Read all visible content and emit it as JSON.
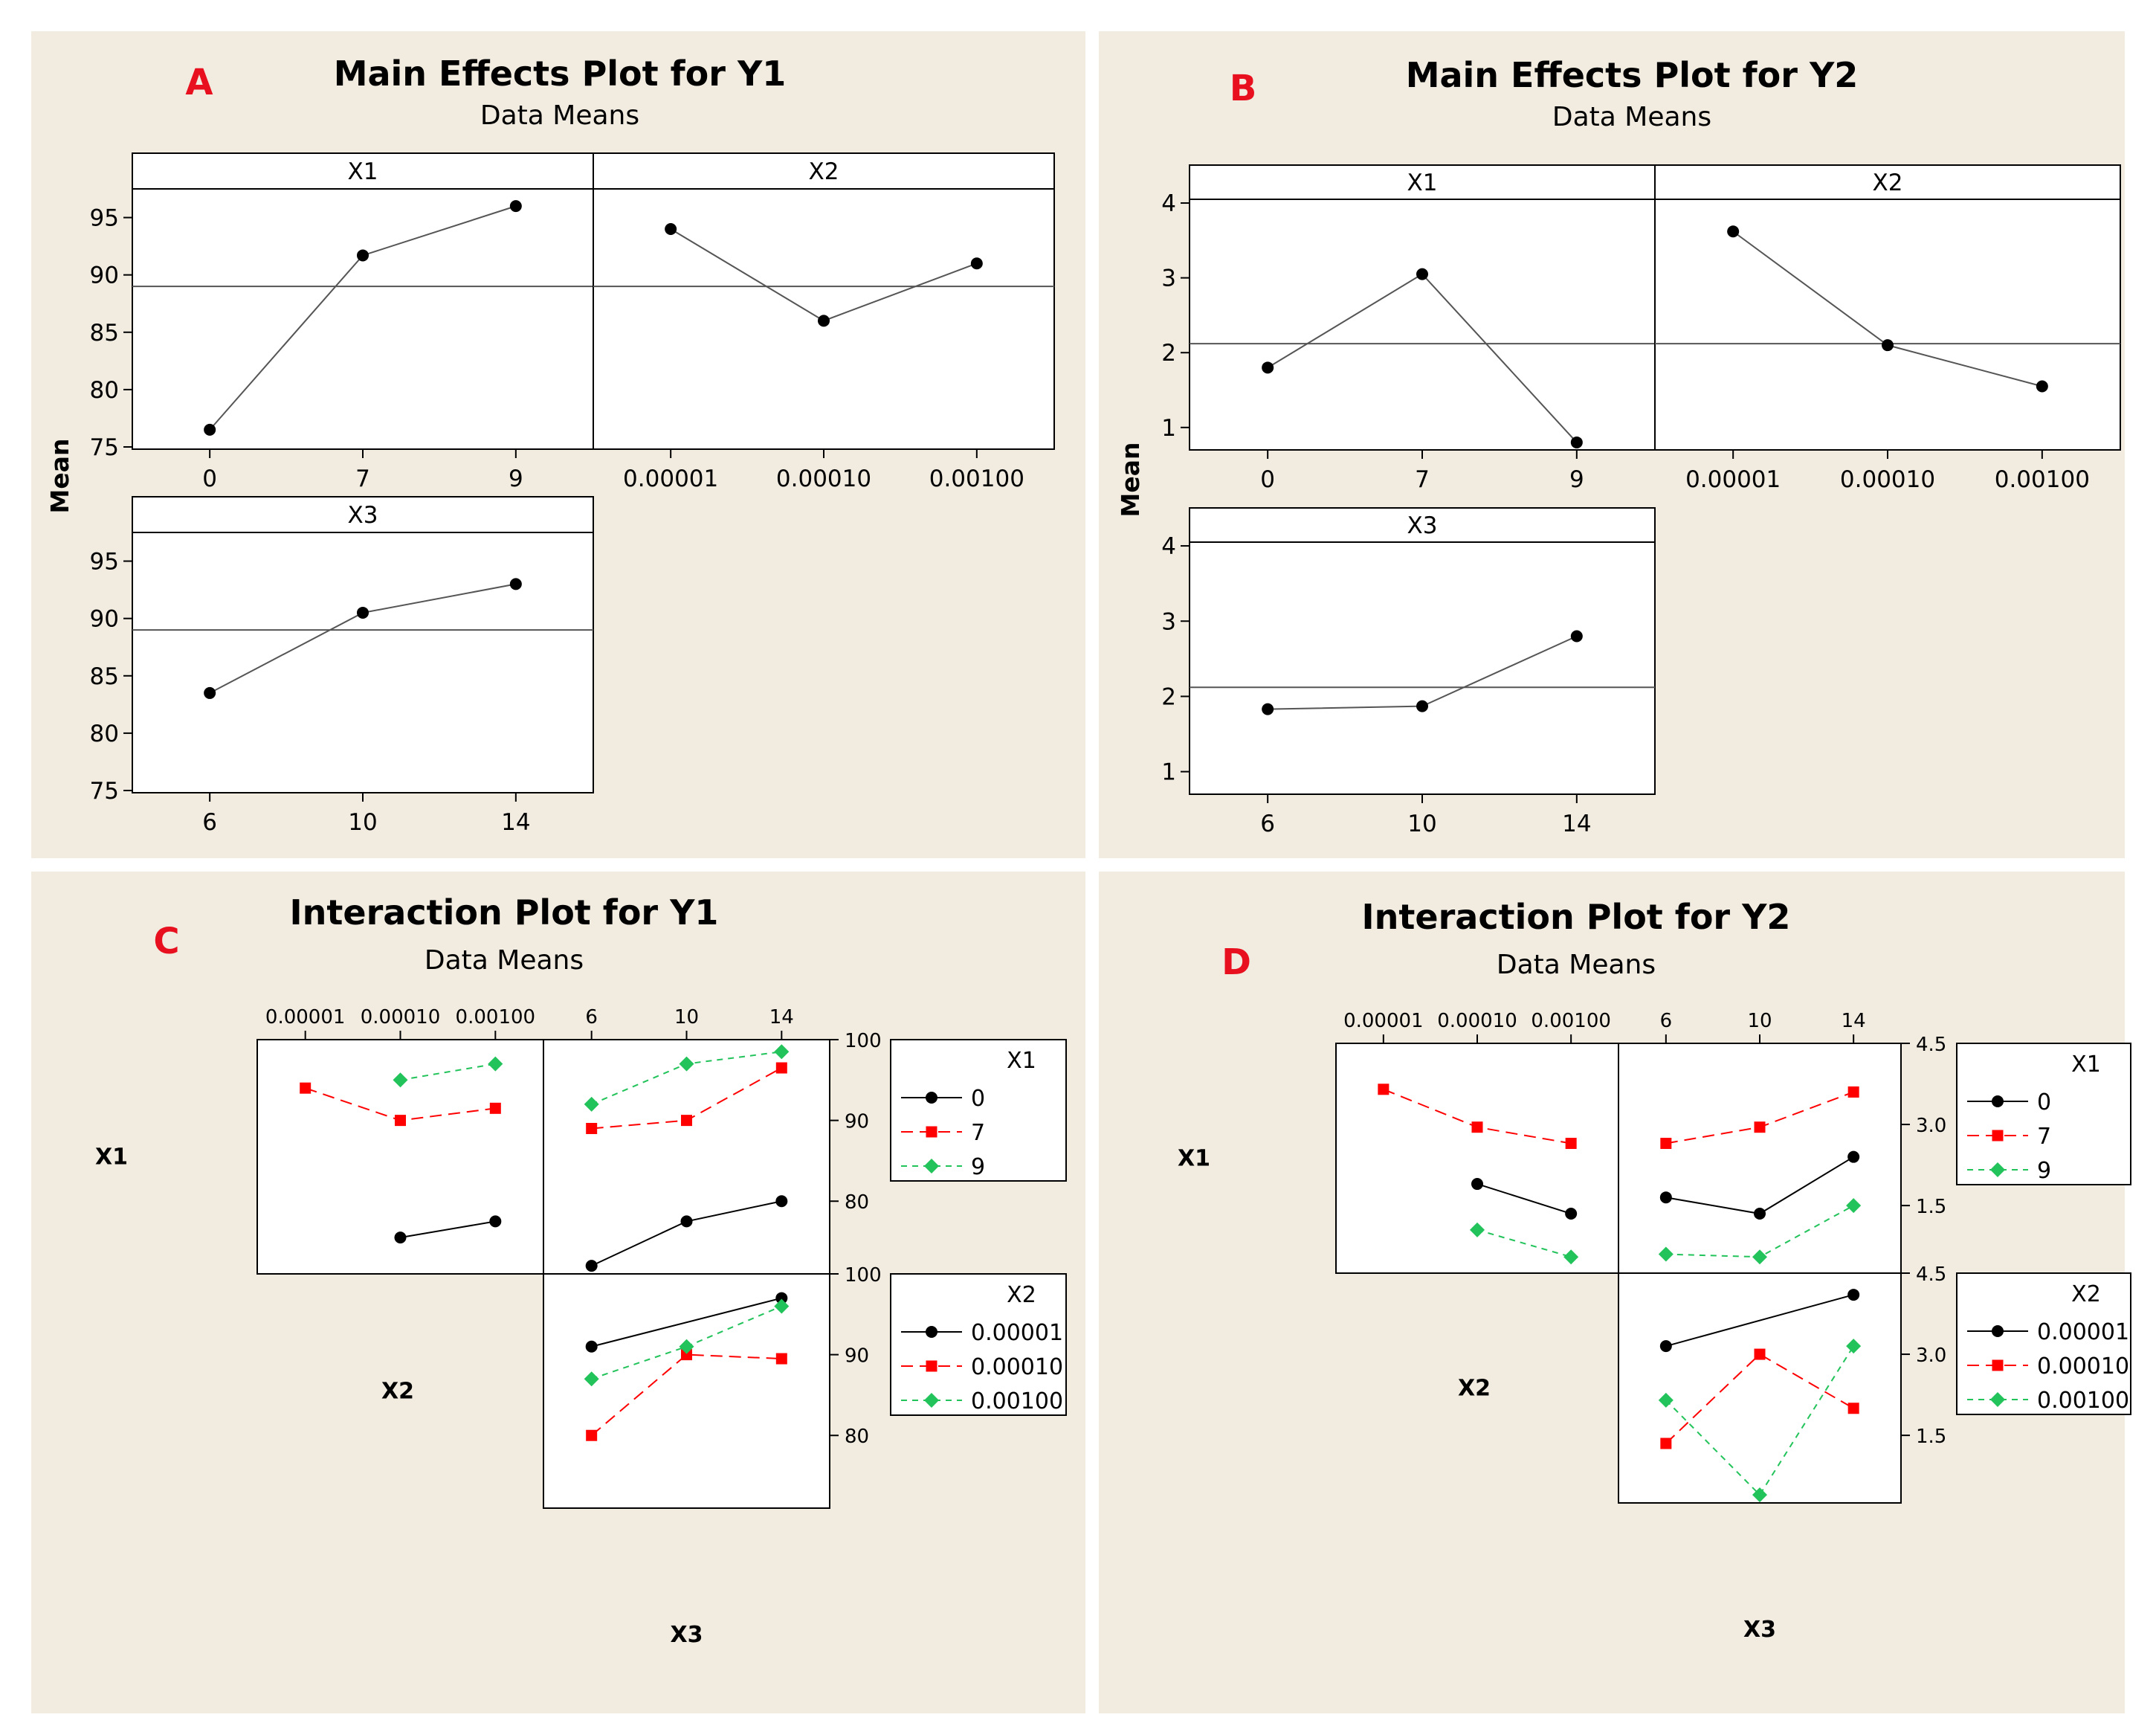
{
  "colors": {
    "background": "#f1ebe0",
    "plot_bg": "#ffffff",
    "letter": "#e8101e",
    "series": [
      "#000000",
      "#ff0000",
      "#22c35a"
    ]
  },
  "panel_letters": [
    "A",
    "B",
    "C",
    "D"
  ],
  "chart_data": [
    {
      "type": "line",
      "panel": "A",
      "title": "Main Effects Plot for Y1",
      "subtitle": "Data Means",
      "ylabel": "Mean",
      "ylim": [
        75,
        97.5
      ],
      "yticks": [
        75,
        80,
        85,
        90,
        95
      ],
      "grand_mean": 89,
      "factors": [
        {
          "name": "X1",
          "levels": [
            "0",
            "7",
            "9"
          ],
          "values": [
            76.5,
            91.7,
            96
          ]
        },
        {
          "name": "X2",
          "levels": [
            "0.00001",
            "0.00010",
            "0.00100"
          ],
          "values": [
            94,
            86,
            91
          ]
        },
        {
          "name": "X3",
          "levels": [
            "6",
            "10",
            "14"
          ],
          "values": [
            83.5,
            90.5,
            93
          ]
        }
      ]
    },
    {
      "type": "line",
      "panel": "B",
      "title": "Main Effects Plot for Y2",
      "subtitle": "Data Means",
      "ylabel": "Mean",
      "ylim": [
        0.7,
        4.05
      ],
      "yticks": [
        1,
        2,
        3,
        4
      ],
      "grand_mean": 2.12,
      "factors": [
        {
          "name": "X1",
          "levels": [
            "0",
            "7",
            "9"
          ],
          "values": [
            1.8,
            3.05,
            0.8
          ]
        },
        {
          "name": "X2",
          "levels": [
            "0.00001",
            "0.00010",
            "0.00100"
          ],
          "values": [
            3.62,
            2.1,
            1.55
          ]
        },
        {
          "name": "X3",
          "levels": [
            "6",
            "10",
            "14"
          ],
          "values": [
            1.83,
            1.87,
            2.8
          ]
        }
      ]
    },
    {
      "type": "line",
      "panel": "C",
      "title": "Interaction Plot for Y1",
      "subtitle": "Data Means",
      "factor_labels": [
        "X1",
        "X2",
        "X3"
      ],
      "x2_levels": [
        "0.00001",
        "0.00010",
        "0.00100"
      ],
      "x3_levels": [
        "6",
        "10",
        "14"
      ],
      "ylim": [
        71,
        100
      ],
      "yticks": [
        80,
        90,
        100
      ],
      "legend_x1": {
        "title": "X1",
        "entries": [
          "0",
          "7",
          "9"
        ]
      },
      "legend_x2": {
        "title": "X2",
        "entries": [
          "0.00001",
          "0.00010",
          "0.00100"
        ]
      },
      "x1_vs_x2": [
        {
          "name": "0",
          "values": [
            null,
            75.5,
            77.5
          ]
        },
        {
          "name": "7",
          "values": [
            94,
            90,
            91.5
          ]
        },
        {
          "name": "9",
          "values": [
            null,
            95,
            97
          ]
        }
      ],
      "x1_vs_x3": [
        {
          "name": "0",
          "values": [
            72,
            77.5,
            80
          ]
        },
        {
          "name": "7",
          "values": [
            89,
            90,
            96.5
          ]
        },
        {
          "name": "9",
          "values": [
            92,
            97,
            98.5
          ]
        }
      ],
      "x2_vs_x3": [
        {
          "name": "0.00001",
          "values": [
            91,
            null,
            97
          ]
        },
        {
          "name": "0.00010",
          "values": [
            80,
            90,
            89.5
          ]
        },
        {
          "name": "0.00100",
          "values": [
            87,
            91,
            96
          ]
        }
      ]
    },
    {
      "type": "line",
      "panel": "D",
      "title": "Interaction Plot for Y2",
      "subtitle": "Data Means",
      "factor_labels": [
        "X1",
        "X2",
        "X3"
      ],
      "x2_levels": [
        "0.00001",
        "0.00010",
        "0.00100"
      ],
      "x3_levels": [
        "6",
        "10",
        "14"
      ],
      "ylim": [
        0.25,
        4.5
      ],
      "yticks": [
        1.5,
        3.0,
        4.5
      ],
      "ytick_labels": [
        "1.5",
        "3.0",
        "4.5"
      ],
      "legend_x1": {
        "title": "X1",
        "entries": [
          "0",
          "7",
          "9"
        ]
      },
      "legend_x2": {
        "title": "X2",
        "entries": [
          "0.00001",
          "0.00010",
          "0.00100"
        ]
      },
      "x1_vs_x2": [
        {
          "name": "0",
          "values": [
            null,
            1.9,
            1.35
          ]
        },
        {
          "name": "7",
          "values": [
            3.65,
            2.95,
            2.65
          ]
        },
        {
          "name": "9",
          "values": [
            null,
            1.05,
            0.55
          ]
        }
      ],
      "x1_vs_x3": [
        {
          "name": "0",
          "values": [
            1.65,
            1.35,
            2.4
          ]
        },
        {
          "name": "7",
          "values": [
            2.65,
            2.95,
            3.6
          ]
        },
        {
          "name": "9",
          "values": [
            0.6,
            0.55,
            1.5
          ]
        }
      ],
      "x2_vs_x3": [
        {
          "name": "0.00001",
          "values": [
            3.15,
            null,
            4.1
          ]
        },
        {
          "name": "0.00010",
          "values": [
            1.35,
            3.0,
            2.0
          ]
        },
        {
          "name": "0.00100",
          "values": [
            2.15,
            0.4,
            3.15
          ]
        }
      ]
    }
  ]
}
